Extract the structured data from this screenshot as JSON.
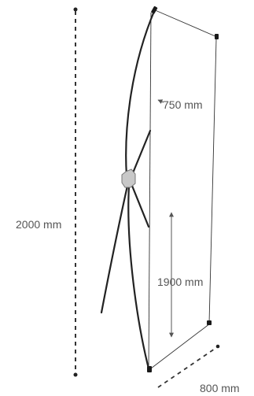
{
  "dimensions": {
    "total_height": "2000 mm",
    "top_width": "750 mm",
    "banner_height": "1900 mm",
    "bottom_width": "800 mm"
  },
  "colors": {
    "line": "#333333",
    "frame": "#222222",
    "dim_line": "#555555",
    "hub_fill": "#c8c8c8",
    "hub_stroke": "#777777"
  }
}
